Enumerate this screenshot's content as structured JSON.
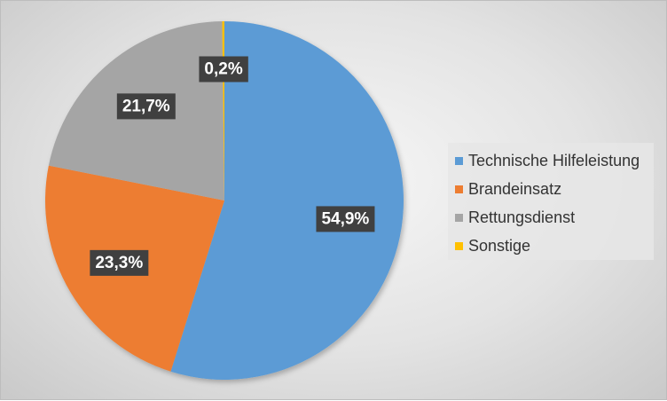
{
  "chart_data": {
    "type": "pie",
    "slices": [
      {
        "name": "Technische Hilfeleistung",
        "value": 54.9,
        "label": "54,9%",
        "color": "#5b9bd5"
      },
      {
        "name": "Brandeinsatz",
        "value": 23.3,
        "label": "23,3%",
        "color": "#ed7d31"
      },
      {
        "name": "Rettungsdienst",
        "value": 21.7,
        "label": "21,7%",
        "color": "#a5a5a5"
      },
      {
        "name": "Sonstige",
        "value": 0.2,
        "label": "0,2%",
        "color": "#ffc000"
      }
    ],
    "legend_position": "right",
    "data_label_style": {
      "background": "#404040",
      "text_color": "#ffffff"
    }
  }
}
